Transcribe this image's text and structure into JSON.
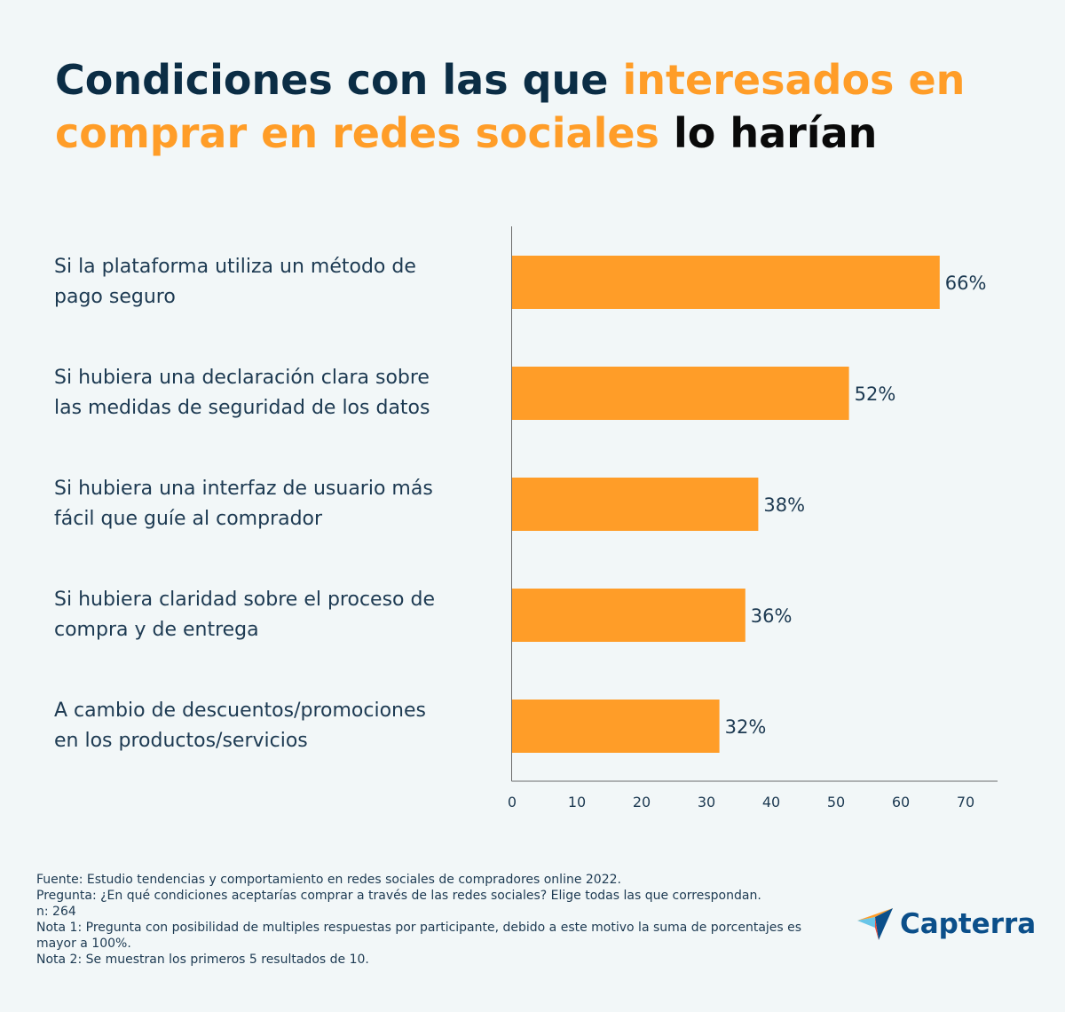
{
  "title": {
    "part1": "Condiciones con las que ",
    "part2": "interesados en comprar en redes sociales",
    "part3": " lo harían"
  },
  "chart_data": {
    "type": "bar",
    "orientation": "horizontal",
    "categories": [
      "Si la plataforma utiliza un método de pago seguro",
      "Si hubiera una declaración clara sobre las medidas de seguridad de los datos",
      "Si hubiera una interfaz de usuario más fácil que guíe al comprador",
      "Si hubiera claridad sobre el proceso de compra y de entrega",
      "A cambio de descuentos/promociones en los productos/servicios"
    ],
    "category_lines": [
      [
        "Si la plataforma utiliza un método de",
        "pago seguro"
      ],
      [
        "Si hubiera una declaración clara sobre",
        "las medidas de seguridad de los datos"
      ],
      [
        "Si hubiera una interfaz de usuario más",
        "fácil que guíe al comprador"
      ],
      [
        "Si hubiera claridad sobre el proceso de",
        "compra y de entrega"
      ],
      [
        "A cambio de descuentos/promociones",
        "en los productos/servicios"
      ]
    ],
    "values": [
      66,
      52,
      38,
      36,
      32
    ],
    "data_labels": [
      "66%",
      "52%",
      "38%",
      "36%",
      "32%"
    ],
    "xlim": [
      0,
      75
    ],
    "xticks": [
      0,
      10,
      20,
      30,
      40,
      50,
      60,
      70
    ],
    "bar_color": "#ff9d28"
  },
  "footnotes": {
    "source": "Fuente: Estudio tendencias y comportamiento en redes sociales de compradores online 2022.",
    "question": "Pregunta: ¿En qué condiciones aceptarías comprar a través de las redes sociales? Elige todas las que correspondan.",
    "n": "n: 264",
    "note1": "Nota 1: Pregunta con posibilidad de multiples respuestas por participante, debido a este motivo la suma de porcentajes es mayor a 100%.",
    "note2": "Nota 2: Se muestran los primeros 5 resultados de 10."
  },
  "logo": {
    "text": "Capterra",
    "icon": "capterra-arrow-icon"
  },
  "colors": {
    "accent": "#ff9d28",
    "dark": "#0b2d45",
    "text": "#1d3a52",
    "background": "#f2f7f8"
  }
}
